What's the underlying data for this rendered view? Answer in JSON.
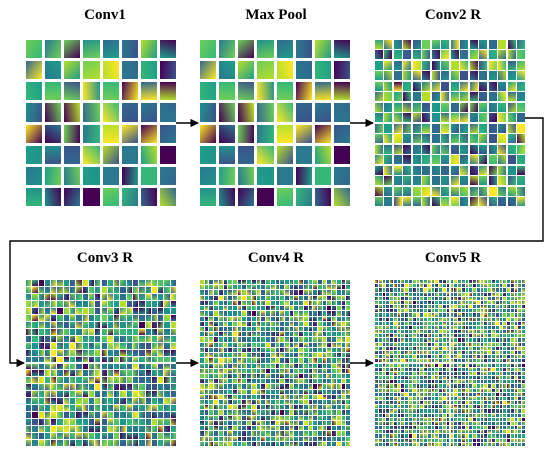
{
  "panels": [
    {
      "id": "conv1",
      "title": "Conv1",
      "grid": 8
    },
    {
      "id": "maxpool",
      "title": "Max Pool",
      "grid": 8
    },
    {
      "id": "conv2",
      "title": "Conv2 R",
      "grid": 16
    },
    {
      "id": "conv3",
      "title": "Conv3 R",
      "grid": 24
    },
    {
      "id": "conv4",
      "title": "Conv4 R",
      "grid": 32
    },
    {
      "id": "conv5",
      "title": "Conv5 R",
      "grid": 40
    }
  ],
  "colors": {
    "palette": [
      "#1f9e89",
      "#2a788e",
      "#35b779",
      "#3b528b",
      "#440154",
      "#6ece58",
      "#b5de2b",
      "#fde725",
      "#21918c",
      "#31688e"
    ],
    "background": "#ffffff",
    "arrow": "#000000"
  }
}
